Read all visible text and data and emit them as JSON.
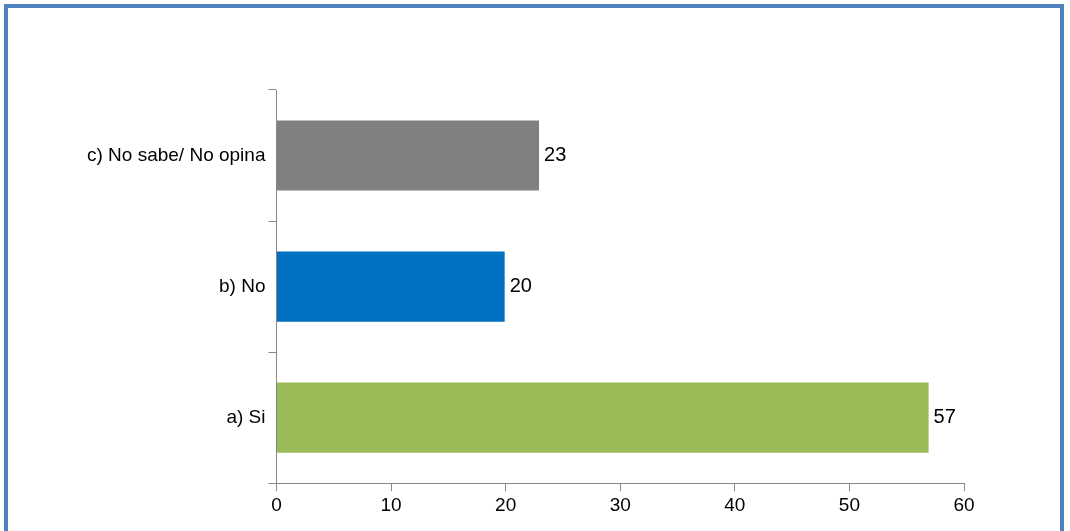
{
  "chart_data": {
    "type": "bar",
    "orientation": "horizontal",
    "categories": [
      "c) No sabe/ No opina",
      "b) No",
      "a) Si"
    ],
    "values": [
      23,
      20,
      57
    ],
    "colors": [
      "#808080",
      "#0070c0",
      "#9bbb59"
    ],
    "xlim": [
      0,
      60
    ],
    "xticks": [
      0,
      10,
      20,
      30,
      40,
      50,
      60
    ],
    "grid": false,
    "legend": false,
    "data_labels": true
  }
}
